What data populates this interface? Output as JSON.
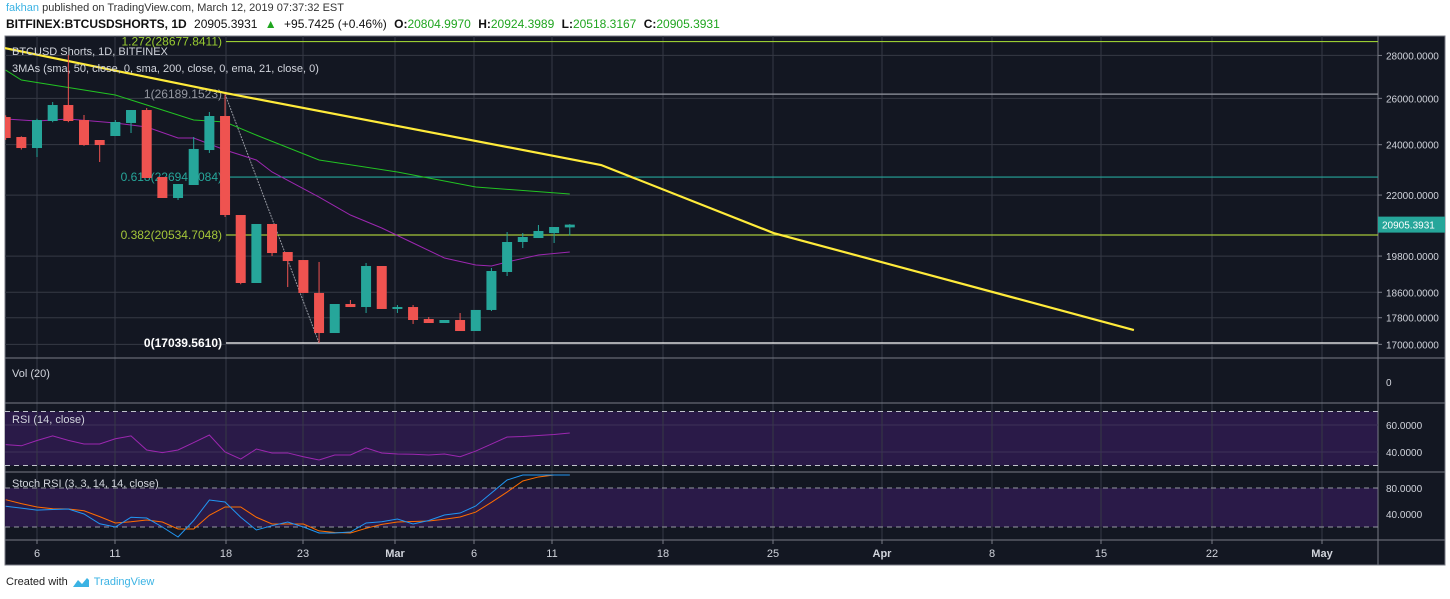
{
  "header": {
    "author": "fakhan",
    "published": "published on TradingView.com, March 12, 2019 07:37:32 EST",
    "symbol": "BITFINEX:BTCUSDSHORTS, 1D",
    "last": "20905.3931",
    "change_arrow": "▲",
    "change": "+95.7425 (+0.46%)",
    "o_label": "O:",
    "o": "20804.9970",
    "h_label": "H:",
    "h": "20924.3989",
    "l_label": "L:",
    "l": "20518.3167",
    "c_label": "C:",
    "c": "20905.3931"
  },
  "legend": {
    "title": "BTCUSD Shorts, 1D, BITFINEX",
    "mas": "3MAs (sma, 50, close, 0, sma, 200, close, 0, ema, 21, close, 0)"
  },
  "panes": {
    "volume": "Vol (20)",
    "volume_axis": "0",
    "rsi": "RSI (14, close)",
    "stoch": "Stoch RSI (3, 3, 14, 14, close)"
  },
  "footer": {
    "created": "Created with",
    "brand": "TradingView"
  },
  "colors": {
    "background": "#131722",
    "grid": "#363a45",
    "up": "#26a69a",
    "down": "#ef5350",
    "sma200": "#ffeb3b",
    "sma50": "#22c322",
    "ema21": "#9c27b0",
    "rsi_line": "#9c27b0",
    "band": "#2a1a48",
    "stoch_k": "#2196f3",
    "stoch_d": "#ff6d00",
    "brand": "#3bb3e4"
  },
  "chart_data": {
    "type": "candlestick",
    "price_scale": "log",
    "price_ticks": [
      {
        "value": 28000,
        "label": "28000.0000"
      },
      {
        "value": 26000,
        "label": "26000.0000"
      },
      {
        "value": 24000,
        "label": "24000.0000"
      },
      {
        "value": 22000,
        "label": "22000.0000"
      },
      {
        "value": 19800,
        "label": "19800.0000"
      },
      {
        "value": 18600,
        "label": "18600.0000"
      },
      {
        "value": 17800,
        "label": "17800.0000"
      },
      {
        "value": 17000,
        "label": "17000.0000"
      }
    ],
    "current_price": {
      "value": 20905.3931,
      "label": "20905.3931"
    },
    "x_ticks": [
      "6",
      "11",
      "18",
      "23",
      "Mar",
      "6",
      "11",
      "18",
      "25",
      "Apr",
      "8",
      "15",
      "22",
      "May"
    ],
    "dates": [
      "2019-02-04",
      "2019-02-05",
      "2019-02-06",
      "2019-02-07",
      "2019-02-08",
      "2019-02-09",
      "2019-02-10",
      "2019-02-11",
      "2019-02-12",
      "2019-02-13",
      "2019-02-14",
      "2019-02-15",
      "2019-02-16",
      "2019-02-17",
      "2019-02-18",
      "2019-02-19",
      "2019-02-20",
      "2019-02-21",
      "2019-02-22",
      "2019-02-23",
      "2019-02-24",
      "2019-02-25",
      "2019-02-26",
      "2019-02-27",
      "2019-02-28",
      "2019-03-01",
      "2019-03-02",
      "2019-03-03",
      "2019-03-04",
      "2019-03-05",
      "2019-03-06",
      "2019-03-07",
      "2019-03-08",
      "2019-03-09",
      "2019-03-10",
      "2019-03-11",
      "2019-03-12"
    ],
    "candles_ohlc": [
      [
        25174,
        25250,
        24200,
        24279
      ],
      [
        24320,
        24350,
        23800,
        23862
      ],
      [
        23862,
        25100,
        23494,
        25045
      ],
      [
        25002,
        25835,
        24950,
        25702
      ],
      [
        25702,
        28021,
        24950,
        25002
      ],
      [
        25045,
        25263,
        23950,
        23986
      ],
      [
        24195,
        24195,
        23293,
        23986
      ],
      [
        24363,
        25045,
        24363,
        24959
      ],
      [
        24917,
        25481,
        24489,
        25481
      ],
      [
        25481,
        25570,
        22658,
        22658
      ],
      [
        22697,
        22697,
        21889,
        21889
      ],
      [
        21889,
        22424,
        21814,
        22424
      ],
      [
        22386,
        24320,
        22386,
        23823
      ],
      [
        23780,
        25394,
        23659,
        25219
      ],
      [
        25219,
        26189,
        21182,
        21255
      ],
      [
        21255,
        21255,
        18860,
        18900
      ],
      [
        18900,
        20928,
        18900,
        20928
      ],
      [
        20928,
        20928,
        19803,
        19904
      ],
      [
        19939,
        19939,
        18769,
        19631
      ],
      [
        19665,
        19665,
        18577,
        18577
      ],
      [
        18577,
        19599,
        17040,
        17336
      ],
      [
        17336,
        18227,
        17336,
        18227
      ],
      [
        18227,
        18353,
        18132,
        18132
      ],
      [
        18132,
        19565,
        17946,
        19463
      ],
      [
        19463,
        19463,
        18071,
        18071
      ],
      [
        18071,
        18195,
        17946,
        18132
      ],
      [
        18132,
        18195,
        17609,
        17730
      ],
      [
        17760,
        17822,
        17638,
        17638
      ],
      [
        17638,
        17730,
        17638,
        17730
      ],
      [
        17730,
        17946,
        17396,
        17396
      ],
      [
        17396,
        18040,
        17396,
        18040
      ],
      [
        18040,
        19396,
        18007,
        19296
      ],
      [
        19263,
        20640,
        19130,
        20287
      ],
      [
        20287,
        20604,
        20078,
        20463
      ],
      [
        20427,
        20892,
        20427,
        20676
      ],
      [
        20604,
        20819,
        20252,
        20819
      ],
      [
        20804.997,
        20924.3989,
        20518.3167,
        20905.3931
      ]
    ],
    "moving_averages": {
      "sma200": [
        [
          "2019-02-02",
          28660
        ],
        [
          "2019-02-18",
          26243
        ],
        [
          "2019-03-14",
          23172
        ],
        [
          "2019-03-25",
          20604
        ],
        [
          "2019-04-17",
          17426
        ]
      ],
      "sma50": [
        [
          "2019-02-04",
          27300
        ],
        [
          "2019-02-05",
          26836
        ],
        [
          "2019-02-11",
          26151
        ],
        [
          "2019-02-16",
          25045
        ],
        [
          "2019-02-18",
          24959
        ],
        [
          "2019-02-20",
          24400
        ],
        [
          "2019-02-24",
          23373
        ],
        [
          "2019-03-01",
          22894
        ],
        [
          "2019-03-06",
          22308
        ],
        [
          "2019-03-12",
          22041
        ]
      ],
      "ema21": [
        [
          "2019-02-04",
          25089
        ],
        [
          "2019-02-06",
          25002
        ],
        [
          "2019-02-08",
          25089
        ],
        [
          "2019-02-11",
          24917
        ],
        [
          "2019-02-13",
          24745
        ],
        [
          "2019-02-15",
          24279
        ],
        [
          "2019-02-16",
          24279
        ],
        [
          "2019-02-18",
          23780
        ],
        [
          "2019-02-20",
          23373
        ],
        [
          "2019-02-21",
          22894
        ],
        [
          "2019-02-24",
          21926
        ],
        [
          "2019-02-26",
          21255
        ],
        [
          "2019-02-28",
          20783
        ],
        [
          "2019-03-02",
          20252
        ],
        [
          "2019-03-04",
          19734
        ],
        [
          "2019-03-06",
          19497
        ],
        [
          "2019-03-07",
          19463
        ],
        [
          "2019-03-08",
          19599
        ],
        [
          "2019-03-10",
          19837
        ],
        [
          "2019-03-12",
          19939
        ]
      ]
    },
    "fibonacci": {
      "anchor_high": {
        "date": "2019-02-18",
        "price": 26189.1523
      },
      "anchor_low": {
        "date": "2019-02-24",
        "price": 17039.561
      },
      "levels": [
        {
          "price": 28677.8411,
          "label": "1.272(28677.8411)",
          "color": "#9acd32"
        },
        {
          "price": 26189.1523,
          "label": "1(26189.1523)",
          "color": "#9598a1"
        },
        {
          "price": 22694.0084,
          "label": "0.618(22694.0084)",
          "color": "#26a69a"
        },
        {
          "price": 20534.7048,
          "label": "0.382(20534.7048)",
          "color": "#a4c639"
        },
        {
          "price": 17039.561,
          "label": "0(17039.5610)",
          "color": "#ffffff"
        }
      ]
    },
    "rsi": {
      "ticks": [
        {
          "value": 60,
          "label": "60.0000"
        },
        {
          "value": 40,
          "label": "40.0000"
        }
      ],
      "bands": [
        70,
        30
      ],
      "values": [
        45.5,
        44.6,
        48.5,
        51.9,
        48.6,
        45.9,
        45.9,
        49.8,
        51.9,
        41.5,
        39.5,
        41.5,
        47,
        52.6,
        40,
        34.8,
        42.2,
        39.3,
        39.3,
        36.5,
        34.1,
        37.8,
        37.8,
        43,
        39.3,
        38.5,
        38.3,
        37.8,
        38.5,
        36.5,
        40.7,
        45.9,
        51.1,
        51.5,
        52.2,
        53,
        54.1
      ]
    },
    "stoch_rsi": {
      "ticks": [
        {
          "value": 80,
          "label": "80.0000"
        },
        {
          "value": 40,
          "label": "40.0000"
        }
      ],
      "bands": [
        80,
        20
      ],
      "k": [
        52,
        49,
        46,
        47,
        47.7,
        40,
        25,
        20,
        35,
        33.8,
        20,
        4.6,
        30,
        61.5,
        58.5,
        35,
        15.4,
        22,
        27.7,
        20,
        10.8,
        10.8,
        12.3,
        26.2,
        28,
        32.3,
        24.6,
        30,
        38.5,
        41.5,
        52.3,
        72.3,
        92.3,
        100,
        100,
        100,
        100
      ],
      "d": [
        62,
        56,
        50.8,
        48,
        47.7,
        45,
        36,
        26.2,
        28,
        30.8,
        27.7,
        16.9,
        16.9,
        38,
        50.8,
        50.8,
        35,
        24.6,
        24.6,
        24.6,
        14,
        11.5,
        10.8,
        18,
        24,
        27.7,
        28.5,
        29.2,
        32,
        35.4,
        43,
        58,
        73.8,
        90.8,
        97,
        100,
        100
      ]
    }
  }
}
